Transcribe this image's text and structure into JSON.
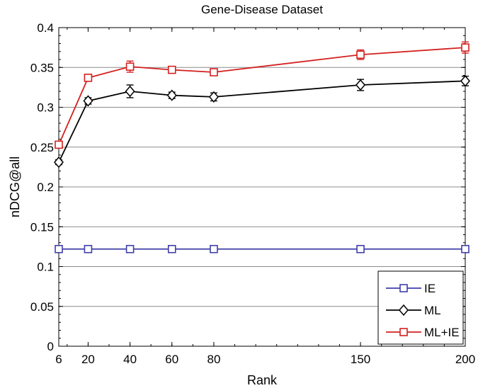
{
  "chart_data": {
    "type": "line",
    "title": "Gene-Disease Dataset",
    "xlabel": "Rank",
    "ylabel": "nDCG@all",
    "x": [
      6,
      20,
      40,
      60,
      80,
      150,
      200
    ],
    "xlim": [
      6,
      200
    ],
    "ylim": [
      0,
      0.4
    ],
    "xticks": [
      6,
      20,
      40,
      60,
      80,
      150,
      200
    ],
    "xtick_labels": [
      "6",
      "20",
      "40",
      "60",
      "80",
      "150",
      "200"
    ],
    "yticks": [
      0,
      0.05,
      0.1,
      0.15,
      0.2,
      0.25,
      0.3,
      0.35,
      0.4
    ],
    "ytick_labels": [
      "0",
      "0.05",
      "0.1",
      "0.15",
      "0.2",
      "0.25",
      "0.3",
      "0.35",
      "0.4"
    ],
    "grid": "horizontal",
    "legend_position": "bottom-right",
    "series": [
      {
        "name": "IE",
        "color": "#3f3fa8",
        "marker": "square",
        "values": [
          0.122,
          0.122,
          0.122,
          0.122,
          0.122,
          0.122,
          0.122
        ],
        "errors": [
          0,
          0,
          0,
          0,
          0,
          0,
          0
        ]
      },
      {
        "name": "ML",
        "color": "#000000",
        "marker": "diamond",
        "values": [
          0.231,
          0.308,
          0.32,
          0.315,
          0.313,
          0.328,
          0.333
        ],
        "errors": [
          0.003,
          0.004,
          0.008,
          0.004,
          0.005,
          0.007,
          0.006
        ]
      },
      {
        "name": "ML+IE",
        "color": "#d42020",
        "marker": "square",
        "values": [
          0.253,
          0.337,
          0.351,
          0.347,
          0.344,
          0.366,
          0.375
        ],
        "errors": [
          0.003,
          0.004,
          0.007,
          0.003,
          0.004,
          0.006,
          0.007
        ]
      }
    ]
  }
}
